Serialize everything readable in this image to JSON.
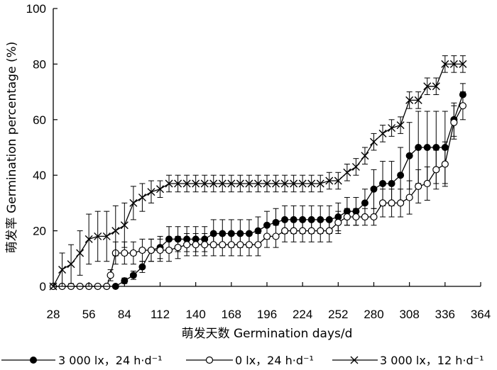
{
  "chart_data": {
    "type": "line",
    "xlabel": "萌发天数 Germination days/d",
    "ylabel": "萌发率 Germination percentage (%)",
    "xlim": [
      28,
      364
    ],
    "ylim": [
      0,
      100
    ],
    "xticks": [
      28,
      56,
      84,
      112,
      140,
      168,
      196,
      224,
      252,
      280,
      308,
      336,
      364
    ],
    "yticks": [
      0,
      20,
      40,
      60,
      80,
      100
    ],
    "grid": false,
    "legend_position": "bottom",
    "series": [
      {
        "name": "3 000 lx，24 h·d⁻¹",
        "marker": "filled-circle",
        "points": [
          [
            28,
            0
          ],
          [
            70,
            0
          ],
          [
            77,
            0
          ],
          [
            84,
            2
          ],
          [
            91,
            4
          ],
          [
            98,
            7
          ],
          [
            105,
            13
          ],
          [
            112,
            14
          ],
          [
            119,
            17
          ],
          [
            126,
            17
          ],
          [
            133,
            17
          ],
          [
            140,
            17
          ],
          [
            147,
            17
          ],
          [
            154,
            19
          ],
          [
            161,
            19
          ],
          [
            168,
            19
          ],
          [
            175,
            19
          ],
          [
            182,
            19
          ],
          [
            189,
            20
          ],
          [
            196,
            22
          ],
          [
            203,
            23
          ],
          [
            210,
            24
          ],
          [
            217,
            24
          ],
          [
            224,
            24
          ],
          [
            231,
            24
          ],
          [
            238,
            24
          ],
          [
            245,
            24
          ],
          [
            252,
            25
          ],
          [
            259,
            27
          ],
          [
            266,
            27
          ],
          [
            273,
            30
          ],
          [
            280,
            35
          ],
          [
            287,
            37
          ],
          [
            294,
            37
          ],
          [
            301,
            40
          ],
          [
            308,
            47
          ],
          [
            315,
            50
          ],
          [
            322,
            50
          ],
          [
            329,
            50
          ],
          [
            336,
            50
          ],
          [
            343,
            60
          ],
          [
            350,
            69
          ]
        ],
        "errors": [
          0,
          0,
          0,
          1,
          1.5,
          2,
          4,
          4,
          4.5,
          4.5,
          4.5,
          4.5,
          4.5,
          5,
          5,
          5,
          5,
          5,
          5,
          5,
          5,
          5,
          5,
          5,
          5,
          5,
          5,
          5,
          5,
          5,
          5,
          7,
          8,
          8,
          10,
          12,
          13,
          13,
          13,
          13,
          6,
          4
        ]
      },
      {
        "name": "0 lx，24 h·d⁻¹",
        "marker": "open-circle",
        "points": [
          [
            28,
            0
          ],
          [
            35,
            0
          ],
          [
            42,
            0
          ],
          [
            49,
            0
          ],
          [
            56,
            0
          ],
          [
            63,
            0
          ],
          [
            70,
            0
          ],
          [
            73,
            4
          ],
          [
            77,
            12
          ],
          [
            84,
            12
          ],
          [
            91,
            12
          ],
          [
            98,
            13
          ],
          [
            105,
            13
          ],
          [
            112,
            13
          ],
          [
            119,
            13
          ],
          [
            126,
            14
          ],
          [
            133,
            15
          ],
          [
            140,
            15
          ],
          [
            147,
            15
          ],
          [
            154,
            15
          ],
          [
            161,
            15
          ],
          [
            168,
            15
          ],
          [
            175,
            15
          ],
          [
            182,
            15
          ],
          [
            189,
            15
          ],
          [
            196,
            18
          ],
          [
            203,
            18
          ],
          [
            210,
            20
          ],
          [
            217,
            20
          ],
          [
            224,
            20
          ],
          [
            231,
            20
          ],
          [
            238,
            20
          ],
          [
            245,
            20
          ],
          [
            252,
            23
          ],
          [
            259,
            25
          ],
          [
            266,
            25
          ],
          [
            273,
            25
          ],
          [
            280,
            25
          ],
          [
            287,
            30
          ],
          [
            294,
            30
          ],
          [
            301,
            30
          ],
          [
            308,
            32
          ],
          [
            315,
            36
          ],
          [
            322,
            37
          ],
          [
            329,
            42
          ],
          [
            336,
            44
          ],
          [
            343,
            59
          ],
          [
            350,
            65
          ]
        ],
        "errors": [
          0,
          0,
          0,
          0,
          0,
          0,
          0,
          2,
          4,
          4,
          4,
          4,
          4,
          4,
          4,
          4,
          4,
          4,
          4,
          4,
          4,
          4,
          4,
          4,
          4,
          4,
          4,
          4,
          4,
          4,
          4,
          4,
          4,
          4,
          3,
          3,
          3,
          3,
          5,
          5,
          5,
          6,
          6,
          6,
          7,
          8,
          6,
          5
        ]
      },
      {
        "name": "3 000 lx，12 h·d⁻¹",
        "marker": "x",
        "points": [
          [
            28,
            0
          ],
          [
            35,
            6
          ],
          [
            42,
            8
          ],
          [
            49,
            12
          ],
          [
            56,
            17
          ],
          [
            63,
            18
          ],
          [
            70,
            18
          ],
          [
            77,
            20
          ],
          [
            84,
            22
          ],
          [
            91,
            30
          ],
          [
            98,
            32
          ],
          [
            105,
            34
          ],
          [
            112,
            35
          ],
          [
            119,
            37
          ],
          [
            126,
            37
          ],
          [
            133,
            37
          ],
          [
            140,
            37
          ],
          [
            147,
            37
          ],
          [
            154,
            37
          ],
          [
            161,
            37
          ],
          [
            168,
            37
          ],
          [
            175,
            37
          ],
          [
            182,
            37
          ],
          [
            189,
            37
          ],
          [
            196,
            37
          ],
          [
            203,
            37
          ],
          [
            210,
            37
          ],
          [
            217,
            37
          ],
          [
            224,
            37
          ],
          [
            231,
            37
          ],
          [
            238,
            37
          ],
          [
            245,
            38
          ],
          [
            252,
            38
          ],
          [
            259,
            41
          ],
          [
            266,
            43
          ],
          [
            273,
            47
          ],
          [
            280,
            52
          ],
          [
            287,
            55
          ],
          [
            294,
            57
          ],
          [
            301,
            58
          ],
          [
            308,
            67
          ],
          [
            315,
            67
          ],
          [
            322,
            72
          ],
          [
            329,
            72
          ],
          [
            336,
            80
          ],
          [
            343,
            80
          ],
          [
            350,
            80
          ]
        ],
        "errors": [
          0,
          6,
          7,
          8,
          9,
          9,
          9,
          9,
          8,
          6,
          5,
          4,
          3,
          3,
          3,
          3,
          3,
          3,
          3,
          3,
          3,
          3,
          3,
          3,
          3,
          3,
          3,
          3,
          3,
          3,
          3,
          3,
          3,
          3,
          3,
          3,
          3,
          3,
          3,
          3,
          3,
          3,
          3,
          3,
          3,
          3,
          3
        ]
      }
    ]
  }
}
